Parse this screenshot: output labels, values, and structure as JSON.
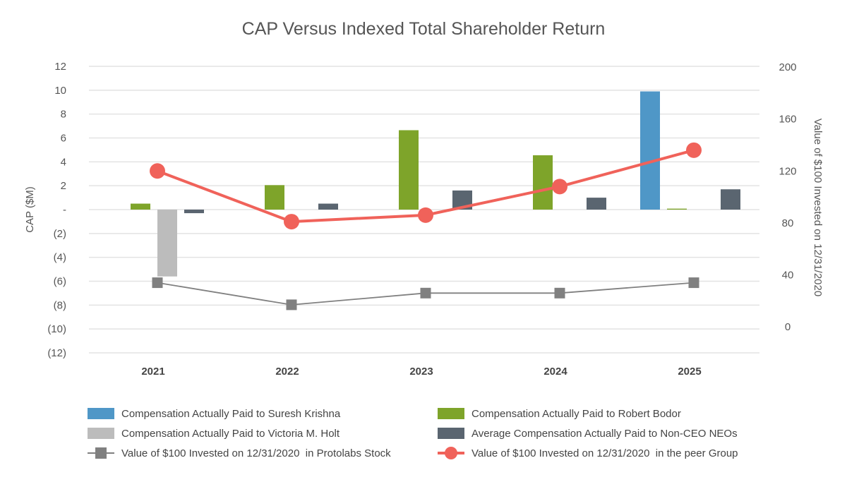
{
  "chart_data": {
    "type": "bar",
    "title": "CAP Versus Indexed Total Shareholder Return",
    "categories": [
      "2021",
      "2022",
      "2023",
      "2024",
      "2025"
    ],
    "ylabel": "CAP ($M)",
    "y2label": "Value of $100 Invested on 12/31/2020",
    "ylim": [
      -12,
      12
    ],
    "y2lim": [
      -20,
      200
    ],
    "yticks": [
      "12",
      "10",
      "8",
      "6",
      "4",
      "2",
      "-",
      "(2)",
      "(4)",
      "(6)",
      "(8)",
      "(10)",
      "(12)"
    ],
    "y2ticks": [
      "200",
      "160",
      "120",
      "80",
      "40",
      "0"
    ],
    "grid": true,
    "legend_placement": "bottom",
    "bar_series": [
      {
        "name": "Compensation Actually Paid to Suresh Krishna",
        "color": "#4f97c7",
        "values": [
          null,
          null,
          null,
          null,
          9.9
        ]
      },
      {
        "name": "Compensation Actually Paid to Robert Bodor",
        "color": "#7ea42a",
        "values": [
          0.5,
          2.05,
          6.65,
          4.55,
          0.08
        ]
      },
      {
        "name": "Compensation Actually Paid to Victoria M. Holt",
        "color": "#bcbcbc",
        "values": [
          -5.6,
          null,
          null,
          null,
          null
        ]
      },
      {
        "name": "Average Compensation Actually Paid to Non-CEO NEOs",
        "color": "#5a6570",
        "values": [
          -0.3,
          0.5,
          1.6,
          1.0,
          1.7
        ]
      }
    ],
    "line_series": [
      {
        "name": "Value of $100 Invested on 12/31/2020  in Protolabs Stock",
        "color": "#808080",
        "marker": "square",
        "values": [
          34,
          17,
          26,
          26,
          34
        ]
      },
      {
        "name": "Value of $100 Invested on 12/31/2020  in the peer Group",
        "color": "#f0625a",
        "marker": "circle",
        "values": [
          120,
          81,
          86,
          108,
          136
        ]
      }
    ]
  }
}
